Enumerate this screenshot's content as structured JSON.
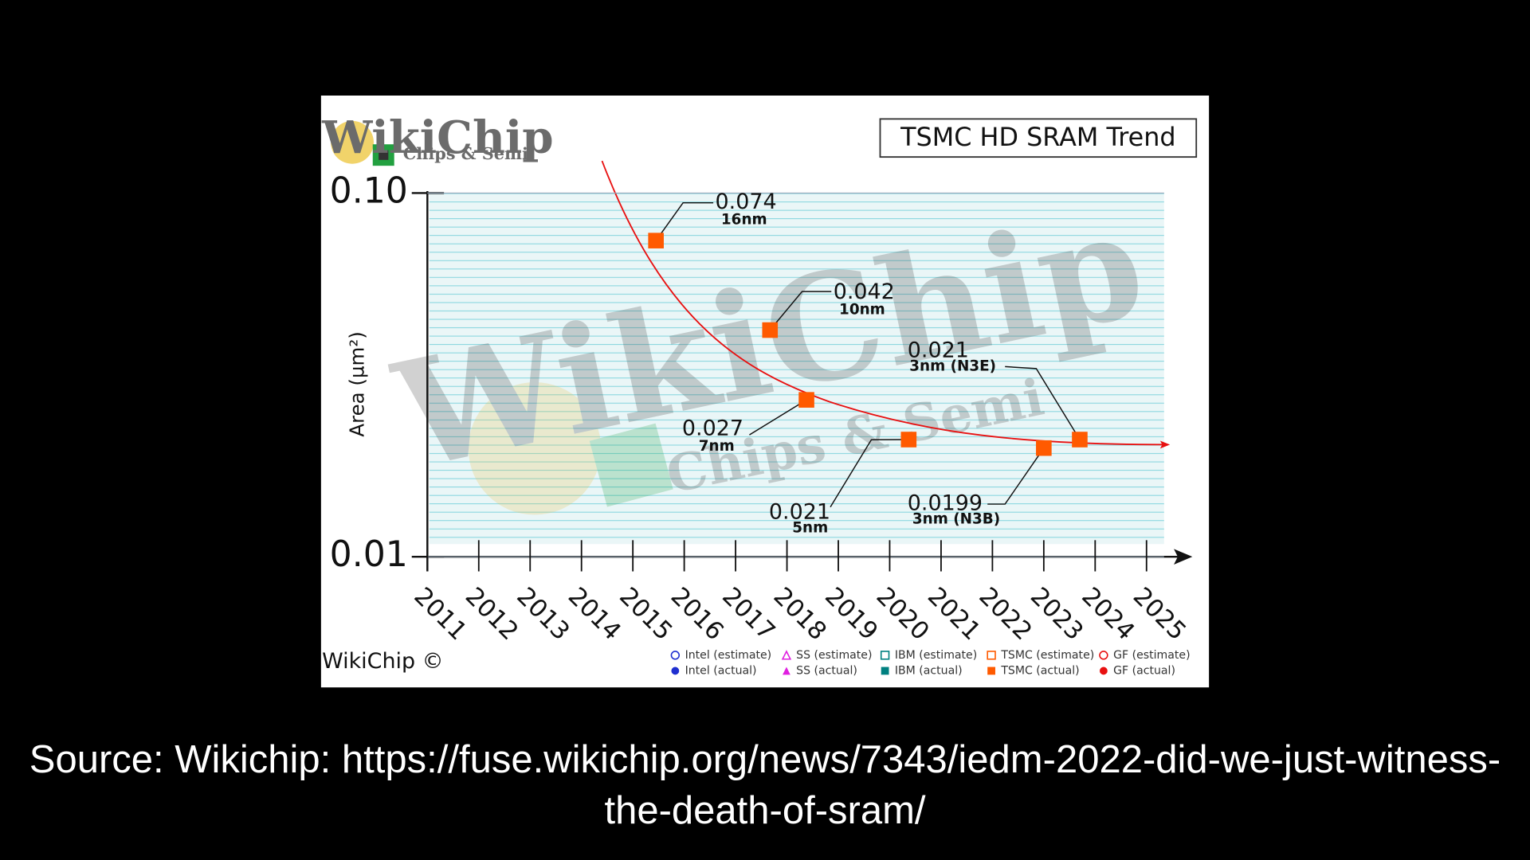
{
  "chart_data": {
    "type": "scatter",
    "title": "TSMC HD SRAM Trend",
    "logo": "WikiChip",
    "logo_subtitle": "Chips & Semi",
    "credit": "WikiChip ©",
    "y_label": "Area (µm²)",
    "xlim": [
      2011,
      2025
    ],
    "xticks": [
      2011,
      2012,
      2013,
      2014,
      2015,
      2016,
      2017,
      2018,
      2019,
      2020,
      2021,
      2022,
      2023,
      2024,
      2025
    ],
    "ylim": [
      0.01,
      0.1
    ],
    "yticks": [
      0.01,
      {
        "value": 0.1,
        "label": "0.10"
      }
    ],
    "log_y": true,
    "grid": true,
    "trend_color": "#e81010",
    "series": [
      {
        "name": "Intel (estimate)",
        "color": "#1f2fd0",
        "marker": "circle",
        "filled": false
      },
      {
        "name": "SS (estimate)",
        "color": "#e020e0",
        "marker": "triangle",
        "filled": false
      },
      {
        "name": "IBM (estimate)",
        "color": "#008080",
        "marker": "square",
        "filled": false
      },
      {
        "name": "TSMC (estimate)",
        "color": "#ff5a00",
        "marker": "square",
        "filled": false
      },
      {
        "name": "GF (estimate)",
        "color": "#e81010",
        "marker": "circle",
        "filled": false
      },
      {
        "name": "Intel (actual)",
        "color": "#1f2fd0",
        "marker": "circle",
        "filled": true
      },
      {
        "name": "SS (actual)",
        "color": "#e020e0",
        "marker": "triangle",
        "filled": true
      },
      {
        "name": "IBM (actual)",
        "color": "#008080",
        "marker": "square",
        "filled": true
      },
      {
        "name": "TSMC (actual)",
        "color": "#ff5a00",
        "marker": "square",
        "filled": true,
        "x": [
          2015.45,
          2017.67,
          2018.38,
          2020.37,
          2023.0,
          2023.7
        ],
        "values": [
          0.074,
          0.042,
          0.027,
          0.021,
          0.0199,
          0.021
        ],
        "labels": [
          "16nm",
          "10nm",
          "7nm",
          "5nm",
          "3nm (N3B)",
          "3nm (N3E)"
        ]
      },
      {
        "name": "GF (actual)",
        "color": "#e81010",
        "marker": "circle",
        "filled": true
      }
    ]
  },
  "caption": "Source: Wikichip: https://fuse.wikichip.org/news/7343/iedm-2022-did-we-just-witness-the-death-of-sram/"
}
